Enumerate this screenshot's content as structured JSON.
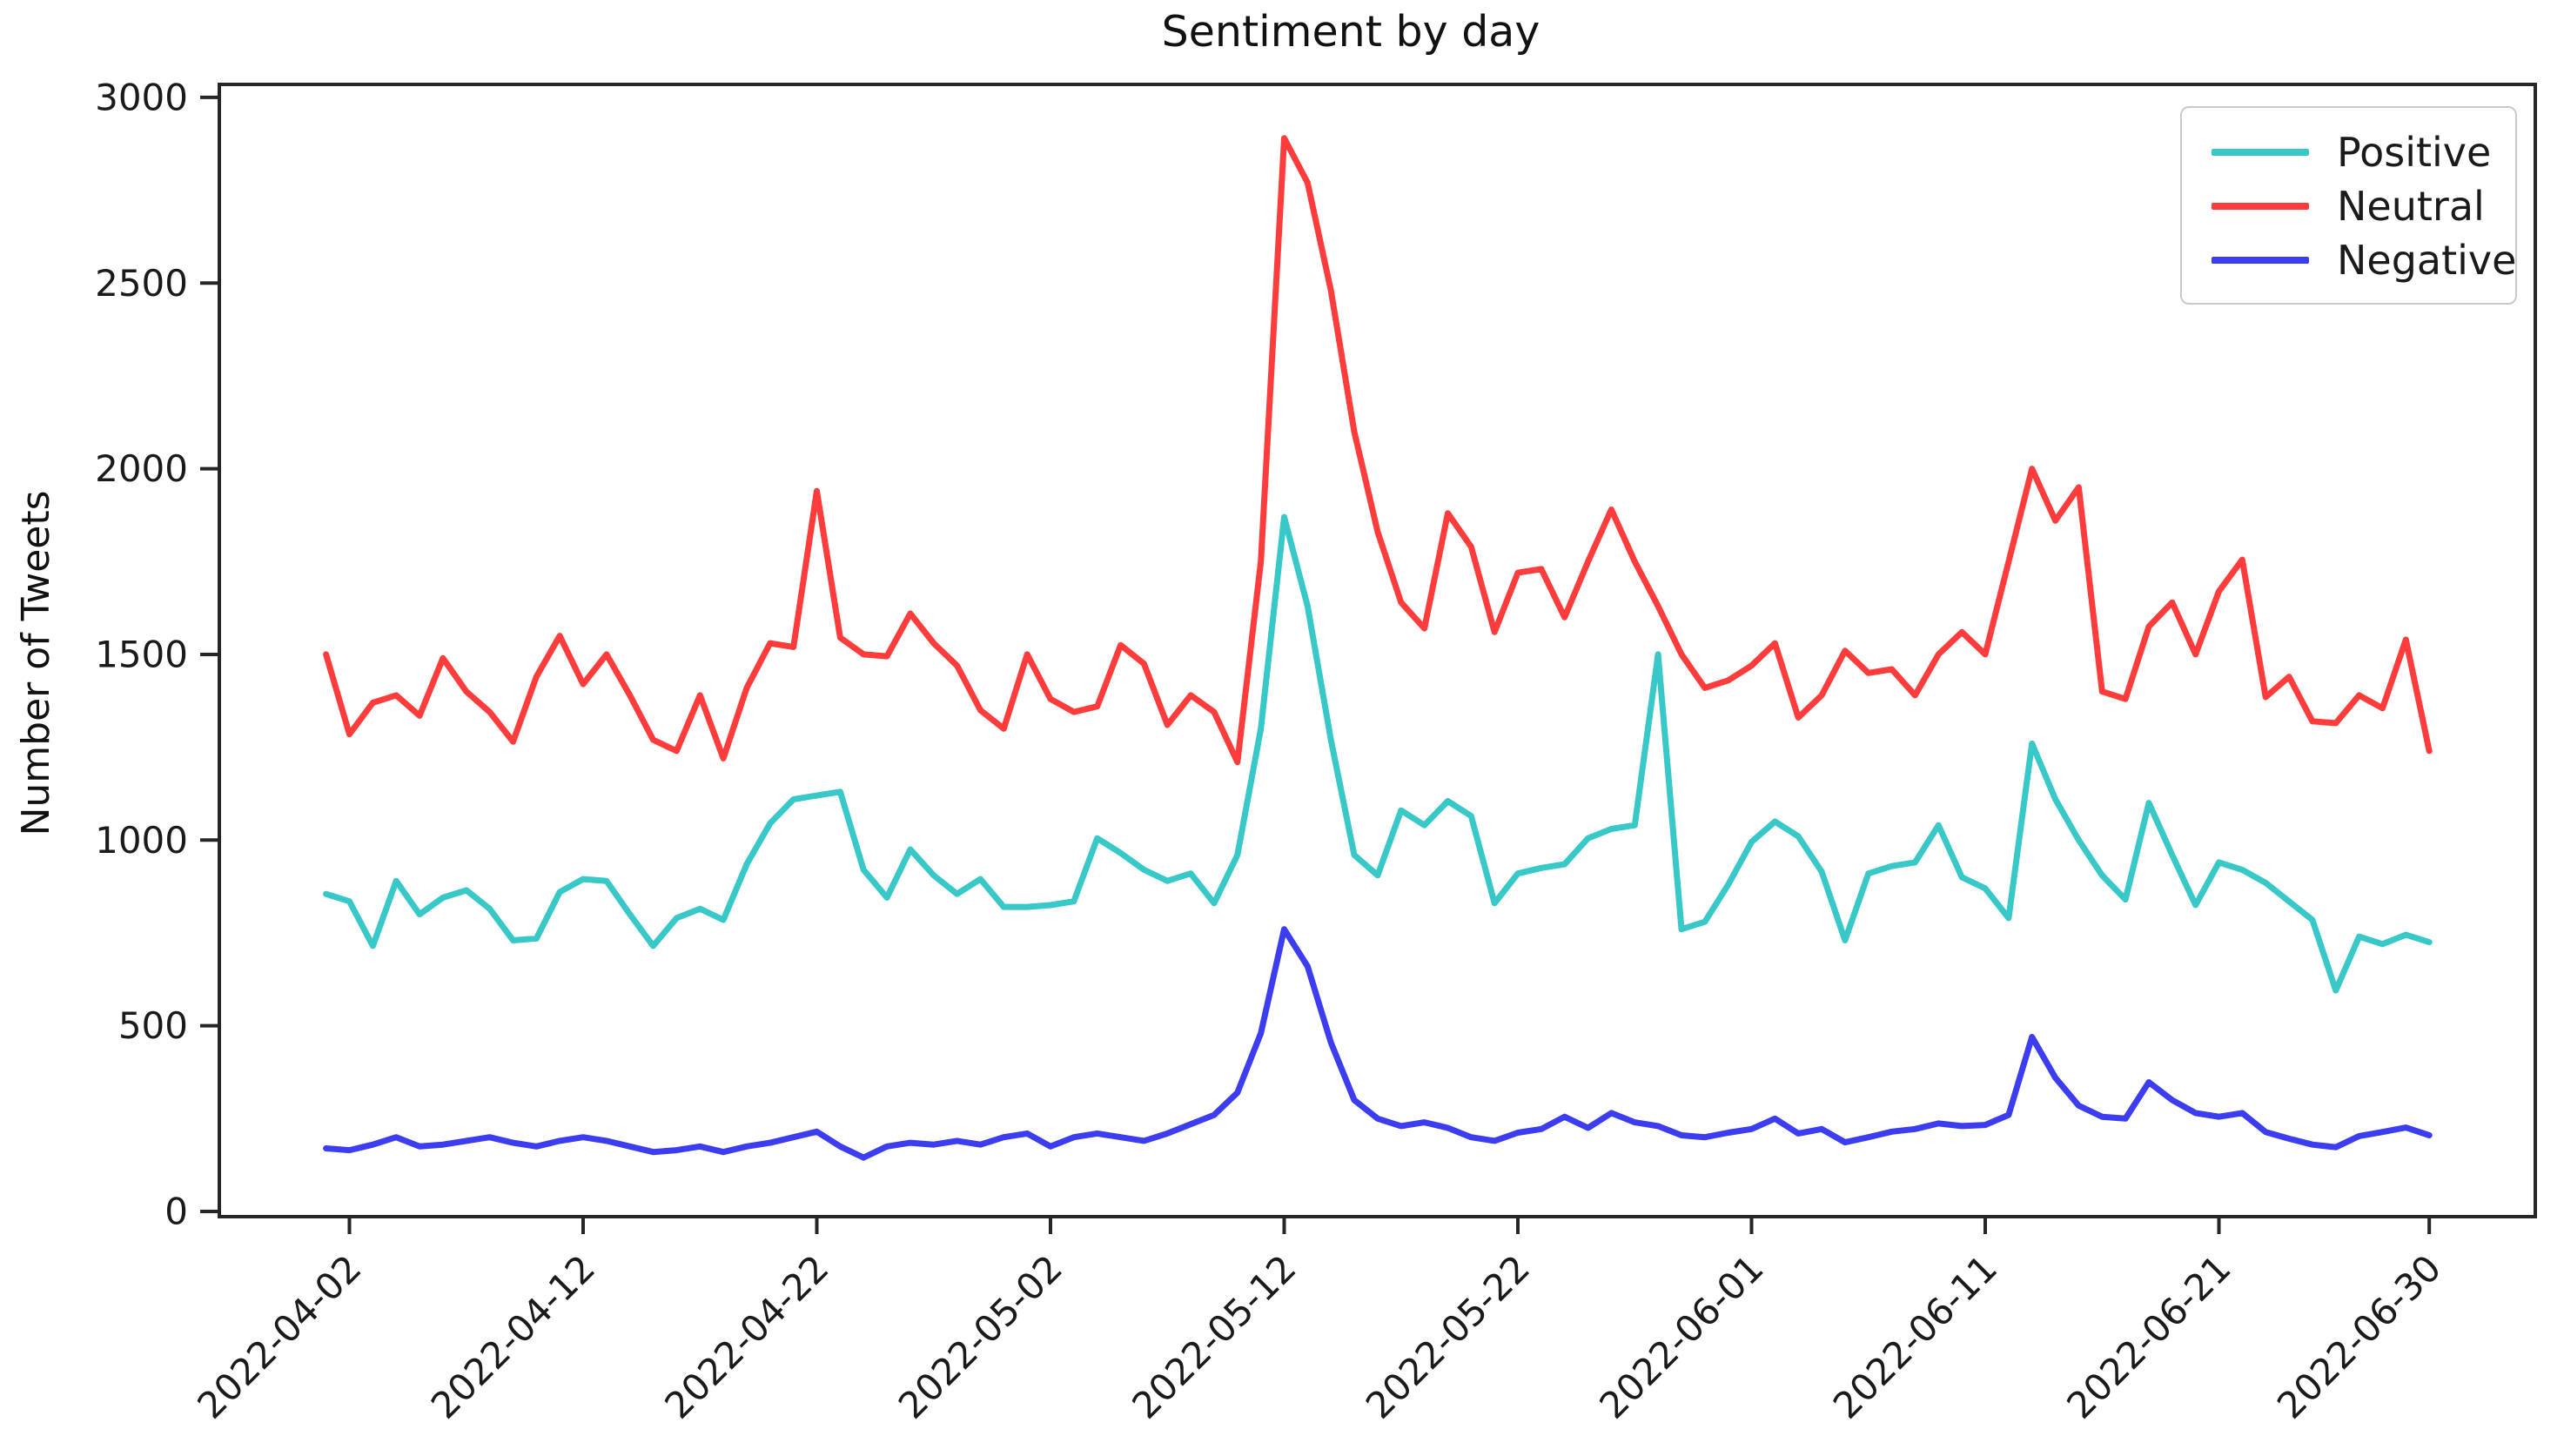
{
  "page": {
    "background": "#ffffff"
  },
  "chart_data": {
    "type": "line",
    "title": "Sentiment by day",
    "xlabel": "",
    "ylabel": "Number of Tweets",
    "x_start_date": "2022-04-01",
    "x_freq": "daily",
    "n_points": 91,
    "x_tick_labels": [
      "2022-04-02",
      "2022-04-12",
      "2022-04-22",
      "2022-05-02",
      "2022-05-12",
      "2022-05-22",
      "2022-06-01",
      "2022-06-11",
      "2022-06-21",
      "2022-06-30"
    ],
    "x_tick_days": [
      2,
      12,
      22,
      32,
      42,
      52,
      62,
      72,
      82,
      91
    ],
    "y_ticks": [
      0,
      500,
      1000,
      1500,
      2000,
      2500,
      3000
    ],
    "ylim": [
      0,
      3000
    ],
    "grid": false,
    "legend_position": "upper right",
    "axis_color": "#262626",
    "tick_label_color": "#1a1a1a",
    "series": [
      {
        "name": "Positive",
        "color": "#38C8C8",
        "values": [
          855,
          835,
          715,
          890,
          800,
          845,
          865,
          815,
          730,
          735,
          860,
          895,
          890,
          800,
          715,
          790,
          815,
          785,
          935,
          1045,
          1110,
          1120,
          1130,
          920,
          845,
          975,
          905,
          855,
          895,
          820,
          820,
          825,
          835,
          1005,
          965,
          920,
          890,
          910,
          830,
          960,
          1300,
          1870,
          1630,
          1270,
          960,
          905,
          1080,
          1040,
          1105,
          1065,
          830,
          910,
          925,
          935,
          1005,
          1030,
          1040,
          1500,
          760,
          780,
          880,
          995,
          1050,
          1010,
          915,
          730,
          910,
          930,
          940,
          1040,
          900,
          870,
          790,
          1260,
          1110,
          1000,
          905,
          840,
          1100,
          960,
          825,
          940,
          920,
          885,
          835,
          785,
          595,
          740,
          720,
          745,
          725
        ]
      },
      {
        "name": "Neutral",
        "color": "#FF3C3C",
        "values": [
          1500,
          1285,
          1370,
          1390,
          1335,
          1490,
          1400,
          1345,
          1265,
          1440,
          1550,
          1420,
          1500,
          1390,
          1270,
          1240,
          1390,
          1220,
          1410,
          1530,
          1520,
          1940,
          1545,
          1500,
          1495,
          1610,
          1530,
          1470,
          1350,
          1300,
          1500,
          1380,
          1345,
          1360,
          1525,
          1475,
          1310,
          1390,
          1345,
          1210,
          1750,
          2890,
          2770,
          2480,
          2100,
          1830,
          1640,
          1570,
          1880,
          1790,
          1560,
          1720,
          1730,
          1600,
          1750,
          1890,
          1750,
          1630,
          1500,
          1410,
          1430,
          1470,
          1530,
          1330,
          1390,
          1510,
          1450,
          1460,
          1390,
          1500,
          1560,
          1500,
          1750,
          2000,
          1860,
          1950,
          1400,
          1380,
          1575,
          1640,
          1500,
          1670,
          1755,
          1385,
          1440,
          1320,
          1315,
          1390,
          1355,
          1540,
          1240
        ]
      },
      {
        "name": "Negative",
        "color": "#3C3CF0",
        "values": [
          170,
          165,
          180,
          200,
          175,
          180,
          190,
          200,
          185,
          175,
          190,
          200,
          190,
          175,
          160,
          165,
          175,
          160,
          175,
          185,
          200,
          215,
          175,
          145,
          175,
          185,
          180,
          190,
          180,
          200,
          210,
          175,
          200,
          210,
          200,
          190,
          210,
          235,
          260,
          320,
          480,
          760,
          660,
          455,
          300,
          250,
          230,
          240,
          225,
          200,
          190,
          212,
          222,
          255,
          225,
          265,
          240,
          230,
          205,
          200,
          212,
          222,
          250,
          210,
          222,
          186,
          200,
          215,
          222,
          237,
          230,
          233,
          260,
          470,
          360,
          285,
          255,
          250,
          348,
          300,
          265,
          255,
          265,
          214,
          196,
          180,
          173,
          203,
          214,
          226,
          205
        ]
      }
    ]
  }
}
